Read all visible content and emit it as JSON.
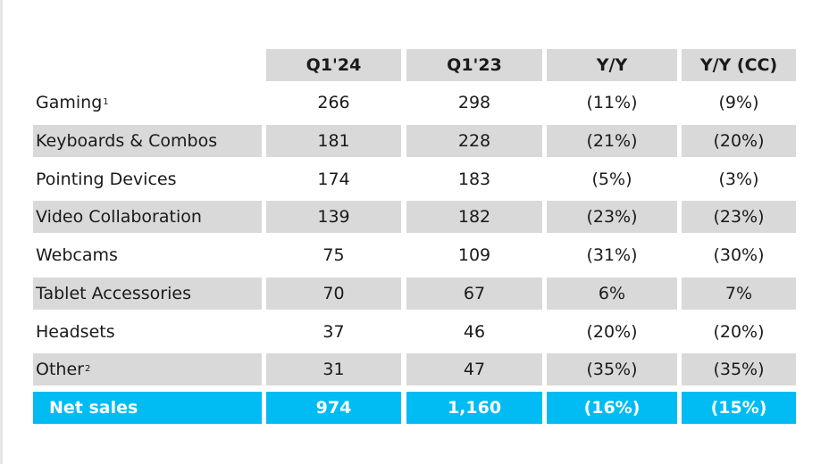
{
  "columns": [
    "Q1'24",
    "Q1'23",
    "Y/Y",
    "Y/Y (CC)"
  ],
  "rows": [
    {
      "label": "Gaming",
      "note": "1",
      "q1_24": "266",
      "q1_23": "298",
      "yy": "(11%)",
      "yy_cc": "(9%)"
    },
    {
      "label": "Keyboards & Combos",
      "note": "",
      "q1_24": "181",
      "q1_23": "228",
      "yy": "(21%)",
      "yy_cc": "(20%)"
    },
    {
      "label": "Pointing Devices",
      "note": "",
      "q1_24": "174",
      "q1_23": "183",
      "yy": "(5%)",
      "yy_cc": "(3%)"
    },
    {
      "label": "Video Collaboration",
      "note": "",
      "q1_24": "139",
      "q1_23": "182",
      "yy": "(23%)",
      "yy_cc": "(23%)"
    },
    {
      "label": "Webcams",
      "note": "",
      "q1_24": "75",
      "q1_23": "109",
      "yy": "(31%)",
      "yy_cc": "(30%)"
    },
    {
      "label": "Tablet Accessories",
      "note": "",
      "q1_24": "70",
      "q1_23": "67",
      "yy": "6%",
      "yy_cc": "7%"
    },
    {
      "label": "Headsets",
      "note": "",
      "q1_24": "37",
      "q1_23": "46",
      "yy": "(20%)",
      "yy_cc": "(20%)"
    },
    {
      "label": "Other",
      "note": "2",
      "q1_24": "31",
      "q1_23": "47",
      "yy": "(35%)",
      "yy_cc": "(35%)"
    }
  ],
  "total": {
    "label": "Net sales",
    "q1_24": "974",
    "q1_23": "1,160",
    "yy": "(16%)",
    "yy_cc": "(15%)"
  },
  "colors": {
    "header_fill": "#d9d9d9",
    "band_fill": "#d9d9d9",
    "total_fill": "#00bcf2",
    "total_text": "#ffffff"
  }
}
